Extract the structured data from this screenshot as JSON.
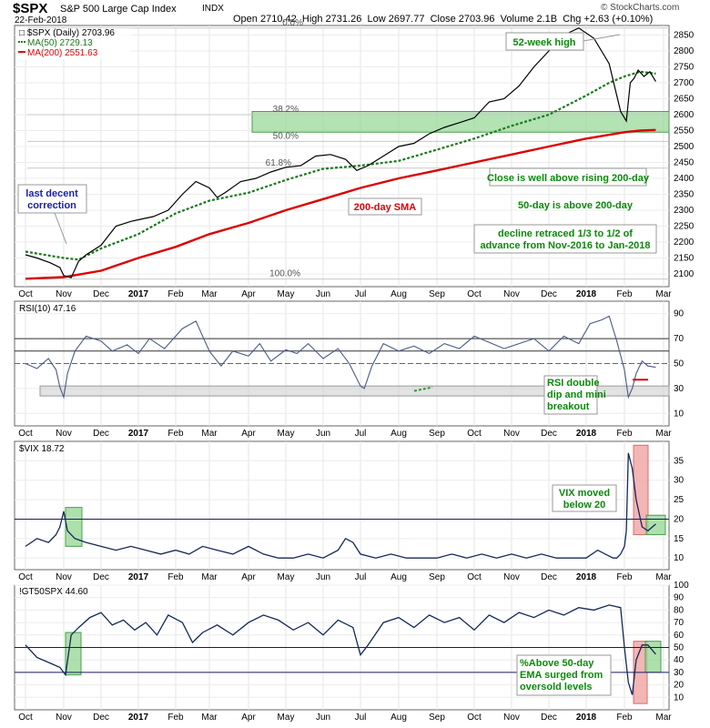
{
  "header": {
    "symbol": "$SPX",
    "name": "S&P 500 Large Cap Index",
    "exchange": "INDX",
    "date": "22-Feb-2018",
    "open_label": "Open",
    "open": "2710.42",
    "high_label": "High",
    "high": "2731.26",
    "low_label": "Low",
    "low": "2697.77",
    "close_label": "Close",
    "close": "2703.96",
    "volume_label": "Volume",
    "volume": "2.1B",
    "chg_label": "Chg",
    "chg": "+2.63 (+0.10%)",
    "copyright": "© StockCharts.com"
  },
  "x_axis_labels": [
    "Oct",
    "Nov",
    "Dec",
    "2017",
    "Feb",
    "Mar",
    "Apr",
    "May",
    "Jun",
    "Jul",
    "Aug",
    "Sep",
    "Oct",
    "Nov",
    "Dec",
    "2018",
    "Feb",
    "Mar"
  ],
  "colors": {
    "price": "#000000",
    "ma50": "#1a7a1a",
    "ma200": "#dd0000",
    "rsi": "#4a5a8a",
    "vix": "#14285a",
    "gt50": "#14285a",
    "green_box": "#9ad89a",
    "red_box": "#f2a8a8",
    "annot": "#0a8a0a",
    "blue_annot": "#1a20b0"
  },
  "chart_data": [
    {
      "type": "line",
      "title": "$SPX (Daily) 2703.96",
      "legend": [
        "$SPX (Daily) 2703.96",
        "MA(50) 2729.13",
        "MA(200) 2551.63"
      ],
      "ylim": [
        2060,
        2880
      ],
      "y_ticks": [
        2100,
        2150,
        2200,
        2250,
        2300,
        2350,
        2400,
        2450,
        2500,
        2550,
        2600,
        2650,
        2700,
        2750,
        2800,
        2850
      ],
      "x_months": [
        "Oct",
        "Nov",
        "Dec",
        "2017",
        "Feb",
        "Mar",
        "Apr",
        "May",
        "Jun",
        "Jul",
        "Aug",
        "Sep",
        "Oct",
        "Nov",
        "Dec",
        "2018",
        "Feb",
        "Mar"
      ],
      "series": [
        {
          "name": "$SPX",
          "t": [
            0,
            0.3,
            0.65,
            0.9,
            1.0,
            1.2,
            1.4,
            1.6,
            2.0,
            2.4,
            2.8,
            3.0,
            3.4,
            3.8,
            4.2,
            4.6,
            5.0,
            5.2,
            5.4,
            5.8,
            6.2,
            6.6,
            7.0,
            7.4,
            7.8,
            8.2,
            8.6,
            8.9,
            9.2,
            9.6,
            10.0,
            10.4,
            10.8,
            11.2,
            11.6,
            12.0,
            12.4,
            12.8,
            13.2,
            13.6,
            14.0,
            14.4,
            14.8,
            15.2,
            15.6,
            15.9,
            16.05,
            16.15,
            16.25,
            16.35,
            16.5,
            16.65,
            16.8
          ],
          "values": [
            2160,
            2150,
            2135,
            2120,
            2095,
            2088,
            2140,
            2160,
            2190,
            2250,
            2265,
            2270,
            2280,
            2300,
            2350,
            2390,
            2370,
            2340,
            2355,
            2390,
            2400,
            2420,
            2435,
            2440,
            2470,
            2475,
            2460,
            2425,
            2440,
            2470,
            2500,
            2510,
            2540,
            2560,
            2575,
            2590,
            2640,
            2650,
            2690,
            2750,
            2800,
            2850,
            2872,
            2840,
            2760,
            2610,
            2580,
            2700,
            2715,
            2740,
            2720,
            2735,
            2704
          ]
        },
        {
          "name": "MA(50)",
          "t": [
            0,
            1.0,
            1.4,
            2.0,
            3.0,
            4.0,
            5.0,
            6.0,
            7.0,
            8.0,
            9.0,
            10.0,
            11.0,
            12.0,
            13.0,
            14.0,
            15.0,
            15.6,
            16.0,
            16.4,
            16.8
          ],
          "values": [
            2170,
            2150,
            2145,
            2180,
            2225,
            2290,
            2330,
            2355,
            2395,
            2430,
            2440,
            2455,
            2490,
            2525,
            2565,
            2600,
            2660,
            2700,
            2720,
            2735,
            2729
          ]
        },
        {
          "name": "MA(200)",
          "t": [
            0,
            1.0,
            2.0,
            3.0,
            4.0,
            5.0,
            6.0,
            7.0,
            8.0,
            9.0,
            10.0,
            11.0,
            12.0,
            13.0,
            14.0,
            15.0,
            16.0,
            16.4,
            16.8
          ],
          "values": [
            2085,
            2090,
            2110,
            2150,
            2185,
            2225,
            2260,
            2300,
            2335,
            2370,
            2400,
            2425,
            2450,
            2475,
            2500,
            2525,
            2545,
            2550,
            2552
          ]
        }
      ],
      "fib_levels": [
        {
          "label": "0.0%",
          "value": 2872
        },
        {
          "label": "38.2%",
          "value": 2600
        },
        {
          "label": "50.0%",
          "value": 2516
        },
        {
          "label": "61.8%",
          "value": 2432
        },
        {
          "label": "100.0%",
          "value": 2084
        }
      ],
      "annotations": [
        "52-week high",
        "Close is well above rising 200-day",
        "50-day is above 200-day",
        "decline retraced 1/3 to 1/2 of",
        "advance from Nov-2016 to Jan-2018",
        "200-day SMA",
        "last decent",
        "correction"
      ]
    },
    {
      "type": "line",
      "title": "RSI(10) 47.16",
      "ylim": [
        0,
        100
      ],
      "y_ticks": [
        10,
        30,
        50,
        70,
        90
      ],
      "reference_lines": [
        70,
        50,
        30
      ],
      "series": [
        {
          "name": "RSI(10)",
          "t": [
            0,
            0.3,
            0.6,
            0.8,
            0.9,
            1.0,
            1.1,
            1.3,
            1.6,
            2.0,
            2.3,
            2.7,
            3.0,
            3.3,
            3.7,
            4.2,
            4.6,
            5.0,
            5.3,
            5.6,
            6.0,
            6.3,
            6.6,
            7.0,
            7.3,
            7.6,
            8.0,
            8.4,
            8.7,
            9.0,
            9.1,
            9.3,
            9.6,
            10.0,
            10.4,
            10.8,
            11.2,
            11.6,
            12.0,
            12.4,
            12.8,
            13.2,
            13.6,
            14.0,
            14.4,
            14.8,
            15.1,
            15.4,
            15.6,
            15.8,
            16.0,
            16.1,
            16.2,
            16.3,
            16.45,
            16.6,
            16.8
          ],
          "values": [
            50,
            46,
            54,
            45,
            31,
            23,
            42,
            60,
            72,
            68,
            60,
            65,
            58,
            70,
            62,
            78,
            84,
            60,
            48,
            60,
            56,
            66,
            52,
            61,
            58,
            66,
            54,
            62,
            50,
            32,
            30,
            48,
            66,
            60,
            64,
            58,
            66,
            62,
            72,
            67,
            62,
            66,
            70,
            60,
            72,
            66,
            82,
            85,
            88,
            68,
            45,
            23,
            30,
            42,
            52,
            48,
            47
          ]
        }
      ],
      "annotations": [
        "RSI double",
        "dip and mini",
        "breakout"
      ]
    },
    {
      "type": "line",
      "title": "$VIX 18.72",
      "ylim": [
        7,
        40
      ],
      "y_ticks": [
        10,
        15,
        20,
        25,
        30,
        35
      ],
      "reference_lines": [
        20
      ],
      "series": [
        {
          "name": "$VIX",
          "t": [
            0,
            0.3,
            0.6,
            0.8,
            0.9,
            1.0,
            1.1,
            1.3,
            1.6,
            2.0,
            2.4,
            2.8,
            3.2,
            3.6,
            4.0,
            4.4,
            4.8,
            5.2,
            5.6,
            6.0,
            6.4,
            6.8,
            7.2,
            7.6,
            8.0,
            8.4,
            8.6,
            8.8,
            9.0,
            9.4,
            9.8,
            10.2,
            10.6,
            11.0,
            11.4,
            11.8,
            12.2,
            12.6,
            13.0,
            13.4,
            13.8,
            14.2,
            14.6,
            15.0,
            15.3,
            15.5,
            15.7,
            15.8,
            15.9,
            16.0,
            16.05,
            16.1,
            16.2,
            16.3,
            16.45,
            16.6,
            16.8
          ],
          "values": [
            13,
            15,
            14,
            16,
            18,
            22,
            17,
            15,
            14,
            13,
            12,
            13,
            12,
            11,
            12,
            11,
            13,
            12,
            11,
            13,
            11,
            10,
            10,
            11,
            10,
            12,
            15,
            14,
            11,
            10,
            11,
            10,
            10,
            10,
            11,
            10,
            11,
            10,
            11,
            10,
            11,
            10,
            10,
            10,
            12,
            11,
            10,
            10,
            11,
            13,
            17,
            37,
            33,
            25,
            18,
            17,
            18.72
          ]
        }
      ],
      "annotations": [
        "VIX moved",
        "below 20"
      ]
    },
    {
      "type": "line",
      "title": "!GT50SPX 44.60",
      "ylim": [
        0,
        100
      ],
      "y_ticks": [
        10,
        20,
        30,
        40,
        50,
        60,
        70,
        80,
        90,
        100
      ],
      "reference_lines": [
        50,
        30
      ],
      "series": [
        {
          "name": "!GT50SPX",
          "t": [
            0,
            0.3,
            0.6,
            0.9,
            1.05,
            1.2,
            1.4,
            1.7,
            2.0,
            2.3,
            2.6,
            2.9,
            3.2,
            3.5,
            3.8,
            4.2,
            4.5,
            4.8,
            5.2,
            5.6,
            6.0,
            6.4,
            6.8,
            7.2,
            7.6,
            8.0,
            8.4,
            8.8,
            9.0,
            9.2,
            9.6,
            10.0,
            10.4,
            10.8,
            11.2,
            11.6,
            12.0,
            12.4,
            12.8,
            13.2,
            13.6,
            14.0,
            14.4,
            14.8,
            15.2,
            15.6,
            15.9,
            16.0,
            16.1,
            16.2,
            16.3,
            16.45,
            16.6,
            16.8
          ],
          "values": [
            52,
            42,
            38,
            34,
            28,
            60,
            66,
            74,
            78,
            68,
            72,
            64,
            70,
            60,
            76,
            70,
            54,
            62,
            68,
            60,
            70,
            76,
            72,
            64,
            70,
            60,
            72,
            66,
            44,
            52,
            70,
            74,
            66,
            76,
            70,
            74,
            64,
            76,
            70,
            78,
            74,
            80,
            76,
            82,
            80,
            84,
            82,
            50,
            22,
            12,
            40,
            52,
            52,
            44.6
          ]
        }
      ],
      "annotations": [
        "%Above 50-day",
        "EMA surged from",
        "oversold levels"
      ]
    }
  ]
}
